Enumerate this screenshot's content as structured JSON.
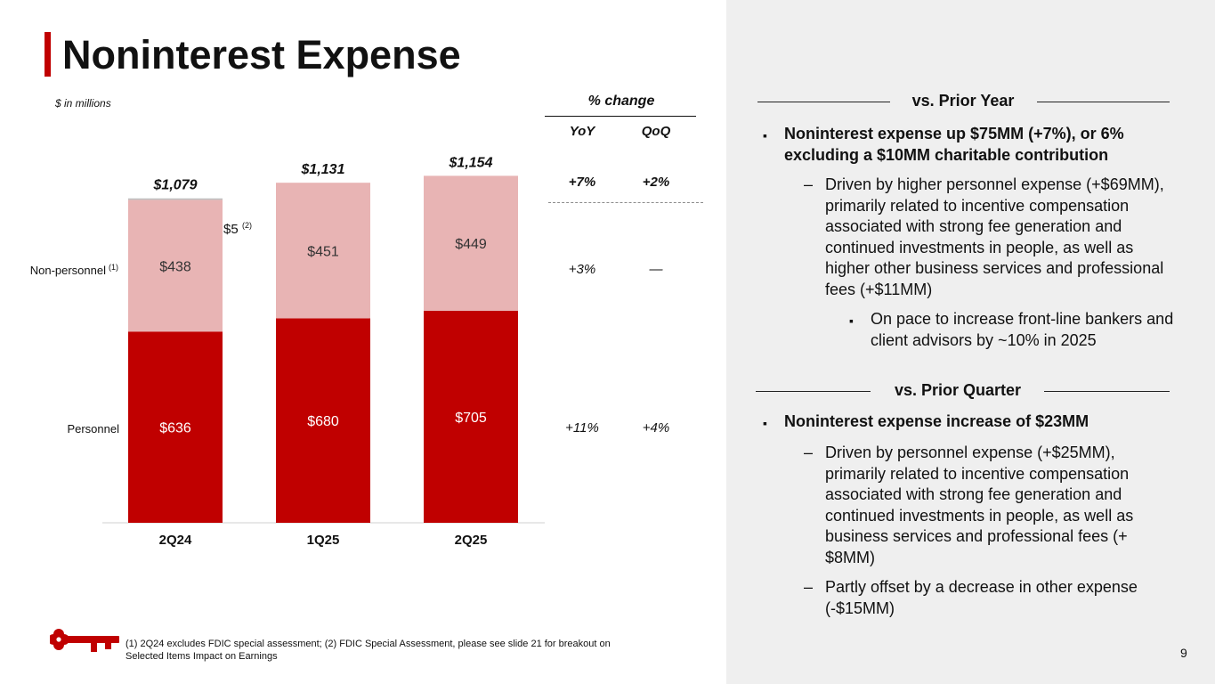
{
  "title": "Noninterest Expense",
  "units_note": "$ in millions",
  "chart_data": {
    "type": "bar",
    "stacked": true,
    "categories": [
      "2Q24",
      "1Q25",
      "2Q25"
    ],
    "series": [
      {
        "name": "Personnel",
        "values": [
          636,
          680,
          705
        ],
        "labels": [
          "$636",
          "$680",
          "$705"
        ],
        "color": "#c00000"
      },
      {
        "name": "Non-personnel",
        "values": [
          438,
          451,
          449
        ],
        "labels": [
          "$438",
          "$451",
          "$449"
        ],
        "color": "#e8b4b4"
      },
      {
        "name": "FDIC Special Assessment",
        "values": [
          5,
          0,
          0
        ],
        "color": "#bfbfbf"
      }
    ],
    "totals": [
      "$1,079",
      "$1,131",
      "$1,154"
    ],
    "series_labels": {
      "personnel": "Personnel",
      "nonpersonnel": "Non-personnel",
      "nonpersonnel_sup": "(1)"
    },
    "callout": {
      "text": "$5",
      "sup": "(2)"
    },
    "ylim": [
      0,
      1200
    ]
  },
  "pct_change": {
    "header": "% change",
    "yoy_label": "YoY",
    "qoq_label": "QoQ",
    "total": {
      "yoy": "+7%",
      "qoq": "+2%"
    },
    "nonpersonnel": {
      "yoy": "+3%",
      "qoq": "—"
    },
    "personnel": {
      "yoy": "+11%",
      "qoq": "+4%"
    }
  },
  "prior_year": {
    "heading": "vs. Prior Year",
    "main": "Noninterest expense up $75MM (+7%), or 6% excluding a $10MM charitable contribution",
    "sub1": "Driven by higher personnel expense (+$69MM), primarily related to incentive compensation associated with strong fee generation and continued investments in people, as well as higher other business services and professional fees (+$11MM)",
    "sub2": "On pace to increase front-line bankers and client advisors by ~10% in 2025"
  },
  "prior_quarter": {
    "heading": "vs. Prior Quarter",
    "main": "Noninterest expense increase of $23MM",
    "sub1": "Driven by personnel expense (+$25MM), primarily related to incentive compensation associated with strong fee generation and continued investments in people, as well as business services and professional fees (+ $8MM)",
    "sub2": "Partly offset by a decrease in other expense (-$15MM)"
  },
  "marks": {
    "square_bullet": "▪",
    "dash": "–"
  },
  "footnote": "(1) 2Q24 excludes FDIC special assessment; (2) FDIC Special Assessment, please see slide 21 for breakout on Selected Items Impact on Earnings",
  "page_number": "9",
  "colors": {
    "brand_red": "#c00000",
    "light_red": "#e8b4b4",
    "panel_gray": "#efefef"
  },
  "logo_icon": "key-icon"
}
